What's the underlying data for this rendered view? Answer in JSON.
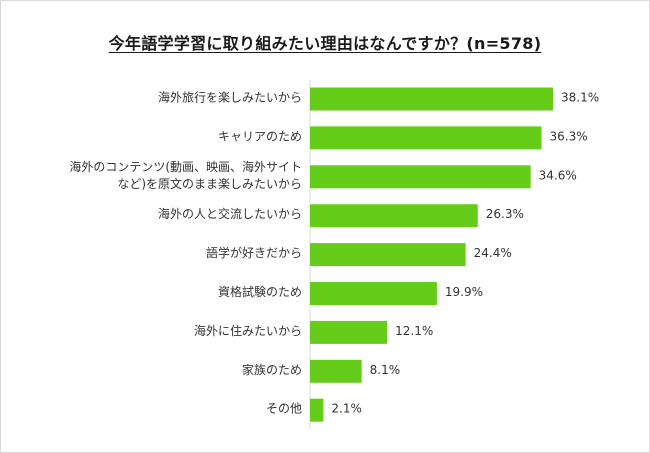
{
  "title": "今年語学学習に取り組みたい理由はなんですか？(n=578)",
  "chart_data": {
    "type": "bar",
    "orientation": "horizontal",
    "title": "今年語学学習に取り組みたい理由はなんですか？(n=578)",
    "categories": [
      [
        "海外旅行を楽しみたいから"
      ],
      [
        "キャリアのため"
      ],
      [
        "海外のコンテンツ(動画、映画、海外サイト",
        "など)を原文のまま楽しみたいから"
      ],
      [
        "海外の人と交流したいから"
      ],
      [
        "語学が好きだから"
      ],
      [
        "資格試験のため"
      ],
      [
        "海外に住みたいから"
      ],
      [
        "家族のため"
      ],
      [
        "その他"
      ]
    ],
    "values": [
      38.1,
      36.3,
      34.6,
      26.3,
      24.4,
      19.9,
      12.1,
      8.1,
      2.1
    ],
    "value_labels": [
      "38.1%",
      "36.3%",
      "34.6%",
      "26.3%",
      "24.4%",
      "19.9%",
      "12.1%",
      "8.1%",
      "2.1%"
    ],
    "xlim": [
      0,
      40
    ],
    "grid": false,
    "bar_color": "#66cc1a"
  }
}
